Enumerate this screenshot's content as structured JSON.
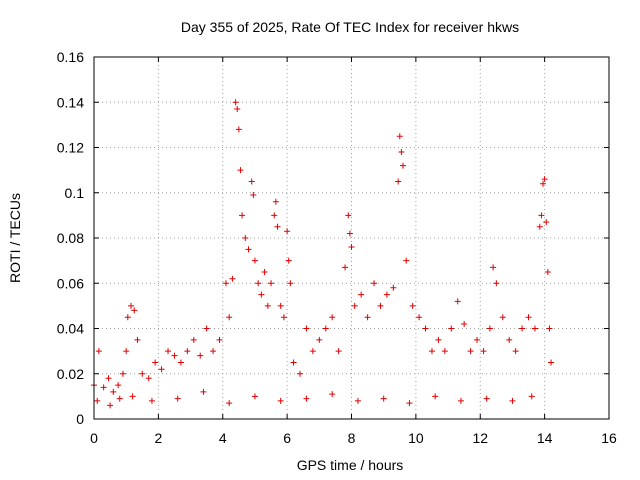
{
  "chart_data": {
    "type": "scatter",
    "title": "Day 355 of 2025, Rate Of TEC Index for receiver hkws",
    "xlabel": "GPS time / hours",
    "ylabel": "ROTI / TECUs",
    "xlim": [
      0,
      16
    ],
    "ylim": [
      0,
      0.16
    ],
    "xticks": [
      0,
      2,
      4,
      6,
      8,
      10,
      12,
      14,
      16
    ],
    "yticks": [
      0,
      0.02,
      0.04,
      0.06,
      0.08,
      0.1,
      0.12,
      0.14,
      0.16
    ],
    "xtick_labels": [
      "0",
      "2",
      "4",
      "6",
      "8",
      "10",
      "12",
      "14",
      "16"
    ],
    "ytick_labels": [
      "0",
      "0.02",
      "0.04",
      "0.06",
      "0.08",
      "0.1",
      "0.12",
      "0.14",
      "0.16"
    ],
    "grid": true,
    "marker": "+",
    "color": "#e00000",
    "series": [
      {
        "name": "ROTI",
        "x": [
          0.0,
          0.15,
          0.3,
          0.45,
          0.6,
          0.75,
          0.9,
          1.0,
          1.05,
          1.15,
          1.25,
          1.35,
          1.5,
          1.7,
          1.9,
          2.1,
          2.3,
          2.5,
          2.7,
          2.9,
          3.1,
          3.3,
          3.5,
          3.7,
          3.9,
          4.1,
          4.2,
          4.3,
          4.4,
          4.45,
          4.5,
          4.55,
          4.6,
          4.7,
          4.8,
          4.9,
          4.95,
          5.0,
          5.1,
          5.2,
          5.3,
          5.4,
          5.5,
          5.6,
          5.65,
          5.7,
          5.8,
          5.9,
          6.0,
          6.05,
          6.1,
          6.2,
          6.4,
          6.6,
          6.8,
          7.0,
          7.2,
          7.4,
          7.6,
          7.8,
          7.9,
          7.95,
          8.0,
          8.1,
          8.3,
          8.5,
          8.7,
          8.9,
          9.1,
          9.3,
          9.45,
          9.5,
          9.55,
          9.6,
          9.7,
          9.9,
          10.1,
          10.3,
          10.5,
          10.7,
          10.9,
          11.1,
          11.3,
          11.5,
          11.7,
          11.9,
          12.1,
          12.3,
          12.4,
          12.5,
          12.7,
          12.9,
          13.1,
          13.3,
          13.5,
          13.7,
          13.85,
          13.9,
          13.95,
          14.0,
          14.05,
          14.1,
          14.15,
          14.2,
          0.1,
          0.5,
          0.8,
          1.2,
          1.8,
          2.6,
          3.4,
          4.2,
          5.0,
          5.8,
          6.6,
          7.4,
          8.2,
          9.0,
          9.8,
          10.6,
          11.4,
          12.2,
          13.0,
          13.6
        ],
        "y": [
          0.015,
          0.03,
          0.014,
          0.018,
          0.012,
          0.015,
          0.02,
          0.03,
          0.045,
          0.05,
          0.048,
          0.035,
          0.02,
          0.018,
          0.025,
          0.022,
          0.03,
          0.028,
          0.025,
          0.03,
          0.035,
          0.028,
          0.04,
          0.03,
          0.035,
          0.06,
          0.045,
          0.062,
          0.14,
          0.137,
          0.128,
          0.11,
          0.09,
          0.08,
          0.075,
          0.105,
          0.099,
          0.07,
          0.06,
          0.055,
          0.065,
          0.05,
          0.06,
          0.09,
          0.096,
          0.085,
          0.05,
          0.045,
          0.083,
          0.07,
          0.06,
          0.025,
          0.02,
          0.04,
          0.03,
          0.035,
          0.04,
          0.045,
          0.03,
          0.067,
          0.09,
          0.082,
          0.076,
          0.05,
          0.055,
          0.045,
          0.06,
          0.05,
          0.055,
          0.058,
          0.105,
          0.125,
          0.118,
          0.112,
          0.07,
          0.05,
          0.045,
          0.04,
          0.03,
          0.035,
          0.03,
          0.04,
          0.052,
          0.042,
          0.03,
          0.035,
          0.03,
          0.04,
          0.067,
          0.06,
          0.045,
          0.035,
          0.03,
          0.04,
          0.045,
          0.04,
          0.085,
          0.09,
          0.104,
          0.106,
          0.087,
          0.065,
          0.04,
          0.025,
          0.008,
          0.006,
          0.009,
          0.01,
          0.008,
          0.009,
          0.012,
          0.007,
          0.01,
          0.008,
          0.009,
          0.011,
          0.008,
          0.009,
          0.007,
          0.01,
          0.008,
          0.009,
          0.008,
          0.01
        ]
      }
    ]
  }
}
